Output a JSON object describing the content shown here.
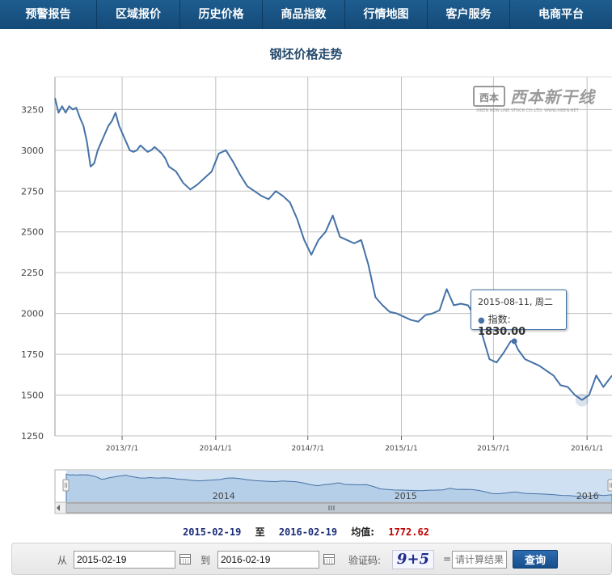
{
  "nav": {
    "items": [
      {
        "label": "预警报告"
      },
      {
        "label": "区域报价"
      },
      {
        "label": "历史价格"
      },
      {
        "label": "商品指数"
      },
      {
        "label": "行情地图"
      },
      {
        "label": "客户服务"
      },
      {
        "label": "电商平台"
      }
    ]
  },
  "chart_data": {
    "type": "line",
    "title": "钢坯价格走势",
    "xlabel": "",
    "ylabel": "",
    "ylim": [
      1250,
      3450
    ],
    "y_ticks": [
      1250,
      1500,
      1750,
      2000,
      2250,
      2500,
      2750,
      3000,
      3250
    ],
    "x_range": [
      "2013-02-19",
      "2016-02-19"
    ],
    "x_ticks": [
      "2013/7/1",
      "2014/1/1",
      "2014/7/1",
      "2015/1/1",
      "2015/7/1",
      "2016/1/1"
    ],
    "grid": "horizontal-and-vertical",
    "legend": "none",
    "color": "#4572a7",
    "series": [
      {
        "x": [
          "2013-02-19",
          "2013-02-26",
          "2013-03-05",
          "2013-03-12",
          "2013-03-19",
          "2013-03-26",
          "2013-04-02",
          "2013-04-09",
          "2013-04-16",
          "2013-04-23",
          "2013-04-30",
          "2013-05-07",
          "2013-05-14",
          "2013-05-21",
          "2013-05-28",
          "2013-06-04",
          "2013-06-11",
          "2013-06-18",
          "2013-06-25",
          "2013-07-02",
          "2013-07-09",
          "2013-07-16",
          "2013-07-23",
          "2013-07-30",
          "2013-08-06",
          "2013-08-13",
          "2013-08-20",
          "2013-08-27",
          "2013-09-03",
          "2013-09-10",
          "2013-09-17",
          "2013-09-24",
          "2013-10-01",
          "2013-10-15",
          "2013-10-29",
          "2013-11-12",
          "2013-11-26",
          "2013-12-10",
          "2013-12-24",
          "2014-01-07",
          "2014-01-21",
          "2014-02-04",
          "2014-02-18",
          "2014-03-04",
          "2014-03-18",
          "2014-04-01",
          "2014-04-15",
          "2014-04-29",
          "2014-05-13",
          "2014-05-27",
          "2014-06-10",
          "2014-06-24",
          "2014-07-08",
          "2014-07-22",
          "2014-08-05",
          "2014-08-19",
          "2014-09-02",
          "2014-09-16",
          "2014-09-30",
          "2014-10-14",
          "2014-10-28",
          "2014-11-11",
          "2014-11-25",
          "2014-12-09",
          "2014-12-23",
          "2015-01-06",
          "2015-01-20",
          "2015-02-03",
          "2015-02-17",
          "2015-03-03",
          "2015-03-17",
          "2015-03-31",
          "2015-04-14",
          "2015-04-28",
          "2015-05-12",
          "2015-05-26",
          "2015-06-09",
          "2015-06-23",
          "2015-07-07",
          "2015-07-21",
          "2015-08-04",
          "2015-08-11",
          "2015-08-18",
          "2015-09-01",
          "2015-09-15",
          "2015-09-29",
          "2015-10-13",
          "2015-10-27",
          "2015-11-10",
          "2015-11-24",
          "2015-12-08",
          "2015-12-22",
          "2016-01-05",
          "2016-01-19",
          "2016-02-02",
          "2016-02-19"
        ],
        "values": [
          3320,
          3230,
          3270,
          3230,
          3270,
          3250,
          3260,
          3200,
          3150,
          3050,
          2900,
          2920,
          3000,
          3050,
          3100,
          3150,
          3180,
          3230,
          3150,
          3100,
          3050,
          3000,
          2990,
          3000,
          3030,
          3010,
          2990,
          3000,
          3020,
          3000,
          2980,
          2950,
          2900,
          2870,
          2800,
          2760,
          2790,
          2830,
          2870,
          2980,
          3000,
          2930,
          2850,
          2780,
          2750,
          2720,
          2700,
          2750,
          2720,
          2680,
          2580,
          2450,
          2360,
          2450,
          2500,
          2600,
          2470,
          2450,
          2430,
          2450,
          2300,
          2100,
          2050,
          2010,
          2000,
          1980,
          1960,
          1950,
          1990,
          2000,
          2020,
          2150,
          2050,
          2060,
          2050,
          1980,
          1870,
          1720,
          1700,
          1760,
          1830,
          1830,
          1780,
          1720,
          1700,
          1680,
          1650,
          1620,
          1560,
          1550,
          1500,
          1470,
          1500,
          1620,
          1550,
          1620
        ]
      }
    ]
  },
  "tooltip": {
    "date_line": "2015-08-11, 周二",
    "label": "指数:",
    "value": "1830.00"
  },
  "logo": {
    "glyph": "西本",
    "name": "西本新干线",
    "sub": "XIBEN NEW LINE STOCK CO.,LTD.  WWW.XIBEN.NET"
  },
  "navigator": {
    "year_labels": [
      "2014",
      "2015",
      "2016"
    ]
  },
  "summary": {
    "from": "2015-02-19",
    "to_label": "至",
    "to": "2016-02-19",
    "avg_label": "均值:",
    "avg_value": "1772.62"
  },
  "form": {
    "from_label": "从",
    "from_value": "2015-02-19",
    "to_label": "到",
    "to_value": "2016-02-19",
    "captcha_label": "验证码:",
    "captcha_text": "9+5",
    "equals": "=",
    "answer_placeholder": "请计算结果",
    "query_label": "查询"
  }
}
